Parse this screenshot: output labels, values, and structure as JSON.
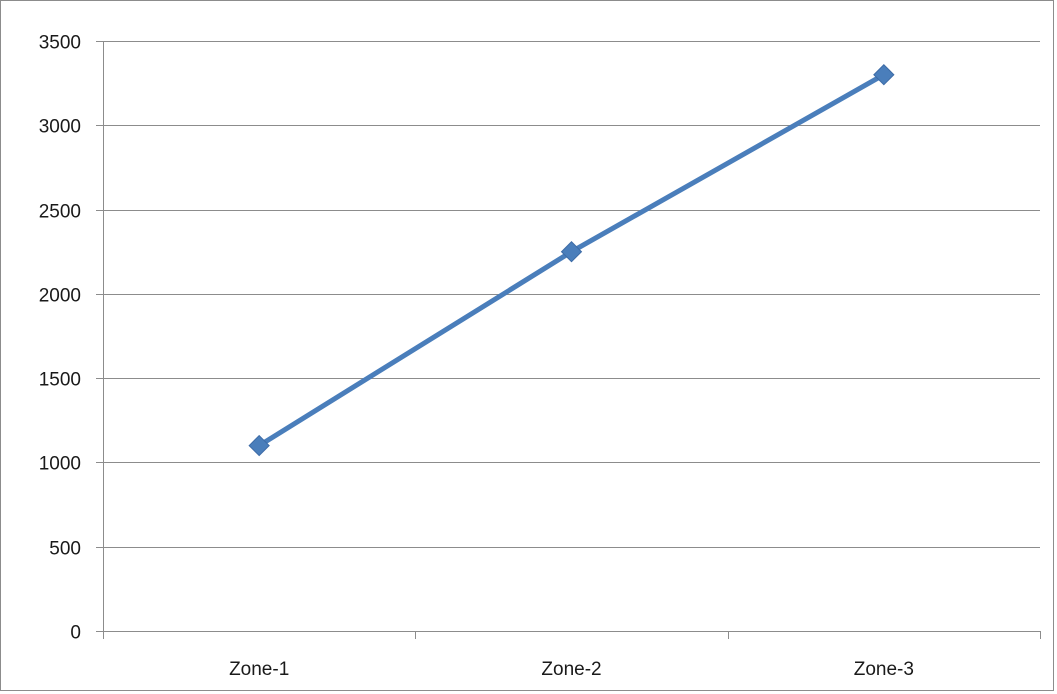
{
  "chart_data": {
    "type": "line",
    "title": "",
    "xlabel": "",
    "ylabel": "",
    "categories": [
      "Zone-1",
      "Zone-2",
      "Zone-3"
    ],
    "series": [
      {
        "values": [
          1100,
          2250,
          3300
        ]
      }
    ],
    "ylim": [
      0,
      3500
    ],
    "yticks": [
      0,
      500,
      1000,
      1500,
      2000,
      2500,
      3000,
      3500
    ],
    "grid": "horizontal",
    "legend": "none",
    "marker": "diamond",
    "line_color": "#4a7ebb",
    "gridline_color": "#8c8c8c"
  }
}
